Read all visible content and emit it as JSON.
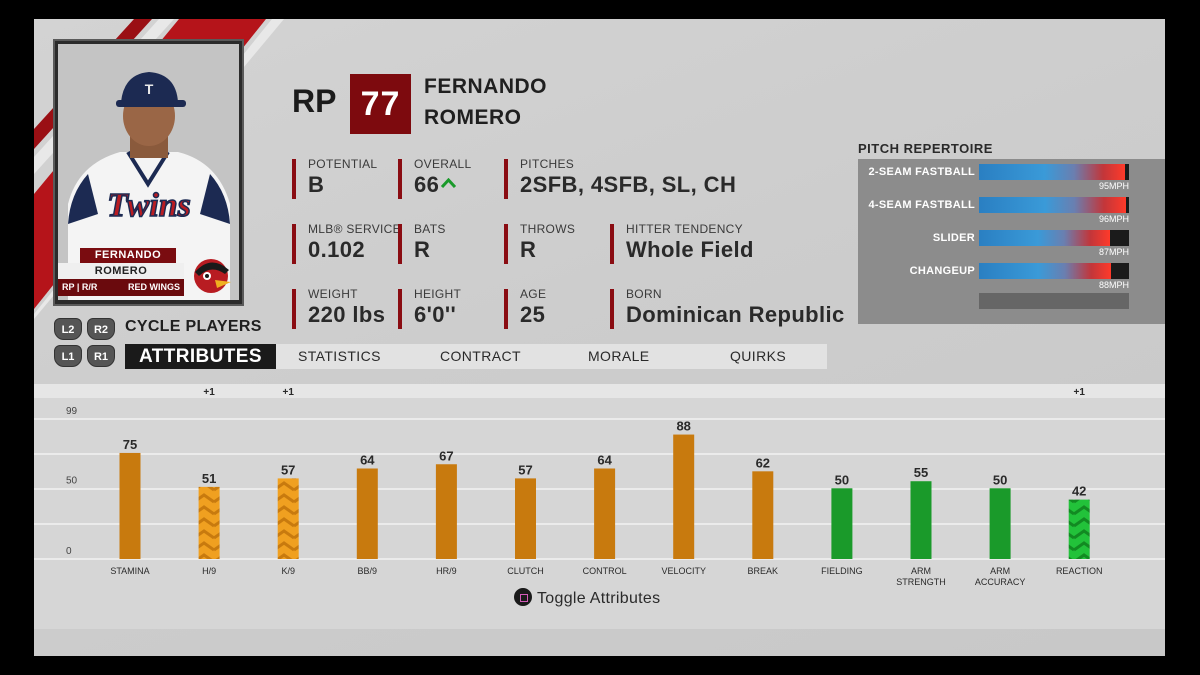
{
  "player": {
    "position": "RP",
    "overall_box": "77",
    "first_name": "FERNANDO",
    "last_name": "ROMERO",
    "card_first": "FERNANDO",
    "card_last": "ROMERO",
    "card_pos": "RP | R/R",
    "card_team": "RED WINGS"
  },
  "info": {
    "potential": {
      "label": "POTENTIAL",
      "value": "B"
    },
    "overall": {
      "label": "OVERALL",
      "value": "66"
    },
    "pitches": {
      "label": "PITCHES",
      "value": "2SFB, 4SFB, SL, CH"
    },
    "service": {
      "label": "MLB® SERVICE",
      "value": "0.102"
    },
    "bats": {
      "label": "BATS",
      "value": "R"
    },
    "throws": {
      "label": "THROWS",
      "value": "R"
    },
    "tendency": {
      "label": "HITTER TENDENCY",
      "value": "Whole Field"
    },
    "weight": {
      "label": "WEIGHT",
      "value": "220 lbs"
    },
    "height": {
      "label": "HEIGHT",
      "value": "6'0''"
    },
    "age": {
      "label": "AGE",
      "value": "25"
    },
    "born": {
      "label": "BORN",
      "value": "Dominican Republic"
    }
  },
  "repertoire": {
    "title": "PITCH REPERTOIRE",
    "pitches": [
      {
        "name": "2-SEAM FASTBALL",
        "speed": "95MPH",
        "fill": 0.97
      },
      {
        "name": "4-SEAM FASTBALL",
        "speed": "96MPH",
        "fill": 0.98
      },
      {
        "name": "SLIDER",
        "speed": "87MPH",
        "fill": 0.87
      },
      {
        "name": "CHANGEUP",
        "speed": "88MPH",
        "fill": 0.88
      }
    ]
  },
  "nav": {
    "l2": "L2",
    "r2": "R2",
    "l1": "L1",
    "r1": "R1",
    "cycle_label": "CYCLE PLAYERS",
    "tabs": [
      "ATTRIBUTES",
      "STATISTICS",
      "CONTRACT",
      "MORALE",
      "QUIRKS"
    ]
  },
  "toggle_label": "Toggle Attributes",
  "colors": {
    "pitching": "#c87a0e",
    "pitching_boost": "#f0a020",
    "fielding": "#1a9a2a",
    "fielding_boost": "#22c23a",
    "accent": "#7d0a0e"
  },
  "chart_data": {
    "type": "bar",
    "categories": [
      "STAMINA",
      "H/9",
      "K/9",
      "BB/9",
      "HR/9",
      "CLUTCH",
      "CONTROL",
      "VELOCITY",
      "BREAK",
      "FIELDING",
      "ARM STRENGTH",
      "ARM ACCURACY",
      "REACTION"
    ],
    "values": [
      75,
      51,
      57,
      64,
      67,
      57,
      64,
      88,
      62,
      50,
      55,
      50,
      42
    ],
    "boosts": [
      "",
      "+1",
      "+1",
      "",
      "",
      "",
      "",
      "",
      "",
      "",
      "",
      "",
      "+1"
    ],
    "group": [
      "pitching",
      "pitching",
      "pitching",
      "pitching",
      "pitching",
      "pitching",
      "pitching",
      "pitching",
      "pitching",
      "fielding",
      "fielding",
      "fielding",
      "fielding"
    ],
    "yticks": [
      "99",
      "50",
      "0"
    ],
    "ylim": [
      0,
      99
    ]
  }
}
